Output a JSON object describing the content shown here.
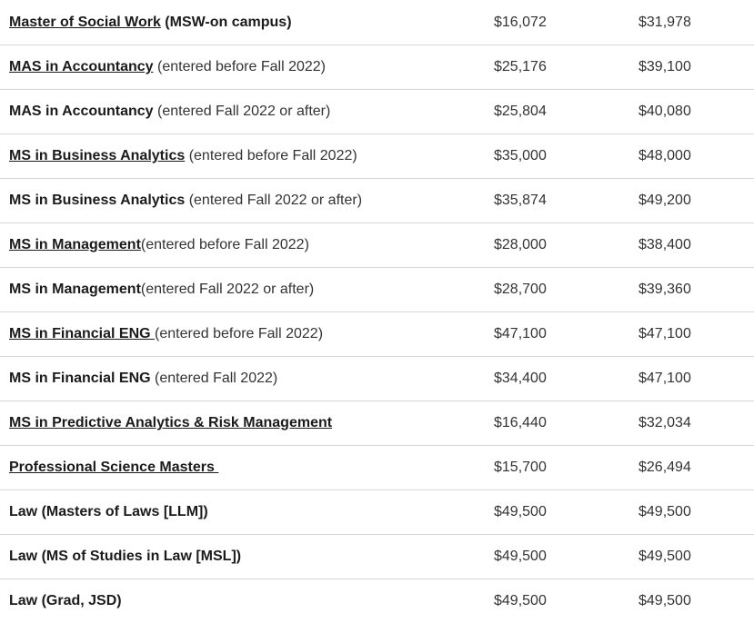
{
  "colors": {
    "border-color": "#d6d6d6",
    "text-dark": "#1b1b1b",
    "text-regular": "#333333",
    "background": "#ffffff"
  },
  "table": {
    "rows": [
      {
        "name": "Master of Social Work",
        "suffix": " (MSW-on campus)",
        "suffix_bold": true,
        "link": true,
        "amount1": "$16,072",
        "amount2": "$31,978"
      },
      {
        "name": "MAS in Accountancy",
        "suffix": " (entered before Fall 2022)",
        "suffix_bold": false,
        "link": true,
        "amount1": "$25,176",
        "amount2": "$39,100"
      },
      {
        "name": "MAS in Accountancy",
        "suffix": " (entered Fall 2022 or after)",
        "suffix_bold": false,
        "link": false,
        "amount1": "$25,804",
        "amount2": "$40,080"
      },
      {
        "name": "MS in Business Analytics",
        "suffix": " (entered before Fall 2022)",
        "suffix_bold": false,
        "link": true,
        "amount1": "$35,000",
        "amount2": "$48,000"
      },
      {
        "name": "MS in Business Analytics",
        "suffix": " (entered Fall 2022 or after)",
        "suffix_bold": false,
        "link": false,
        "amount1": "$35,874",
        "amount2": "$49,200"
      },
      {
        "name": "MS in Management",
        "suffix": "(entered before Fall 2022)",
        "suffix_bold": false,
        "link": true,
        "amount1": "$28,000",
        "amount2": "$38,400"
      },
      {
        "name": "MS in Management",
        "suffix": "(entered Fall 2022 or after)",
        "suffix_bold": false,
        "link": false,
        "amount1": "$28,700",
        "amount2": "$39,360"
      },
      {
        "name": "MS in Financial ENG ",
        "suffix": "(entered before Fall 2022)",
        "suffix_bold": false,
        "link": true,
        "amount1": "$47,100",
        "amount2": "$47,100"
      },
      {
        "name": "MS in Financial ENG",
        "suffix": " (entered Fall 2022)",
        "suffix_bold": false,
        "link": false,
        "amount1": "$34,400",
        "amount2": "$47,100"
      },
      {
        "name": "MS in Predictive Analytics & Risk Management",
        "suffix": "",
        "suffix_bold": false,
        "link": true,
        "amount1": "$16,440",
        "amount2": "$32,034"
      },
      {
        "name": "Professional Science Masters ",
        "suffix": "",
        "suffix_bold": false,
        "link": true,
        "amount1": "$15,700",
        "amount2": "$26,494"
      },
      {
        "name": "Law (Masters of Laws [LLM])",
        "suffix": "",
        "suffix_bold": false,
        "link": false,
        "amount1": "$49,500",
        "amount2": "$49,500"
      },
      {
        "name": "Law (MS of Studies in Law [MSL])",
        "suffix": "",
        "suffix_bold": false,
        "link": false,
        "amount1": "$49,500",
        "amount2": "$49,500"
      },
      {
        "name": "Law (Grad, JSD)",
        "suffix": "",
        "suffix_bold": false,
        "link": false,
        "amount1": "$49,500",
        "amount2": "$49,500"
      }
    ]
  }
}
